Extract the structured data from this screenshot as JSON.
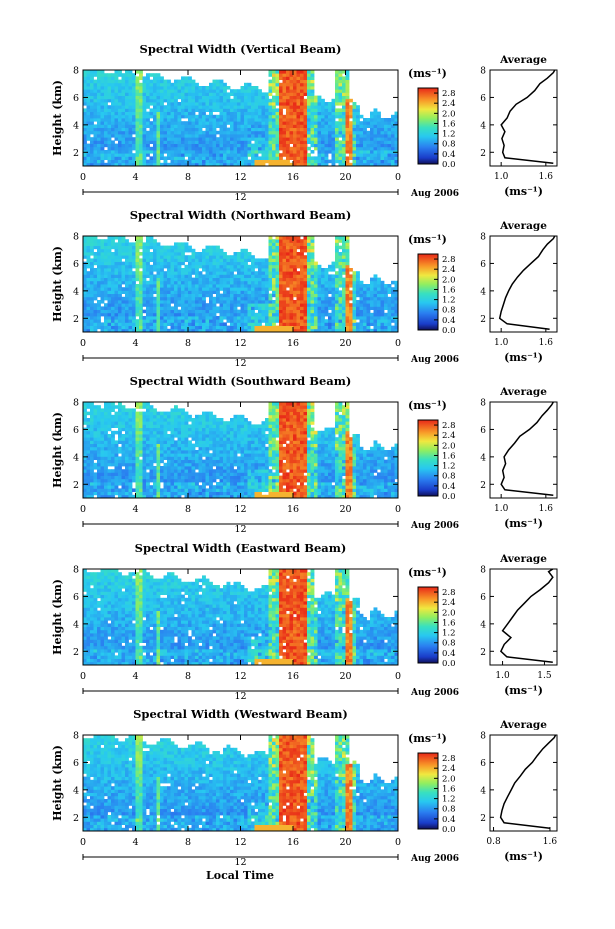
{
  "figure": {
    "xlabel": "Local Time"
  },
  "chart_data": [
    {
      "type": "heatmap",
      "title": "Spectral Width (Vertical Beam)",
      "xlabel": "",
      "ylabel": "Height (km)",
      "xlim": [
        0,
        24
      ],
      "ylim": [
        1,
        8
      ],
      "xticks": [
        "0",
        "4",
        "8",
        "12",
        "16",
        "20",
        "0"
      ],
      "yticks": [
        "2",
        "4",
        "6",
        "8"
      ],
      "date_marker": "12",
      "date_label": "Aug 2006",
      "colorbar": {
        "unit": "(ms⁻¹)",
        "ticks": [
          "0.0",
          "0.4",
          "0.8",
          "1.2",
          "1.6",
          "2.0",
          "2.4",
          "2.8"
        ],
        "range": [
          0,
          3.0
        ]
      },
      "average_profile": {
        "title": "Average",
        "xlabel": "(ms⁻¹)",
        "xticks": [
          "1.0",
          "1.6"
        ],
        "xlim": [
          0.85,
          1.75
        ],
        "yticks": [
          "2",
          "4",
          "6",
          "8"
        ],
        "ylim": [
          1,
          8
        ],
        "height_km": [
          1.2,
          1.6,
          2.0,
          2.5,
          3.0,
          3.5,
          4.0,
          4.5,
          5.0,
          5.5,
          6.0,
          6.5,
          7.0,
          7.4,
          7.8,
          8.0
        ],
        "width": [
          1.7,
          1.05,
          1.02,
          1.04,
          1.01,
          1.05,
          1.0,
          1.08,
          1.12,
          1.2,
          1.35,
          1.45,
          1.52,
          1.62,
          1.7,
          1.72
        ]
      }
    },
    {
      "type": "heatmap",
      "title": "Spectral Width (Northward Beam)",
      "xlabel": "",
      "ylabel": "Height (km)",
      "xlim": [
        0,
        24
      ],
      "ylim": [
        1,
        8
      ],
      "xticks": [
        "0",
        "4",
        "8",
        "12",
        "16",
        "20",
        "0"
      ],
      "yticks": [
        "2",
        "4",
        "6",
        "8"
      ],
      "date_marker": "12",
      "date_label": "Aug 2006",
      "colorbar": {
        "unit": "(ms⁻¹)",
        "ticks": [
          "0.0",
          "0.4",
          "0.8",
          "1.2",
          "1.6",
          "2.0",
          "2.4",
          "2.8"
        ],
        "range": [
          0,
          3.0
        ]
      },
      "average_profile": {
        "title": "Average",
        "xlabel": "(ms⁻¹)",
        "xticks": [
          "1.0",
          "1.6"
        ],
        "xlim": [
          0.85,
          1.75
        ],
        "yticks": [
          "2",
          "4",
          "6",
          "8"
        ],
        "ylim": [
          1,
          8
        ],
        "height_km": [
          1.2,
          1.6,
          2.0,
          2.5,
          3.0,
          3.5,
          4.0,
          4.5,
          5.0,
          5.5,
          6.0,
          6.5,
          7.0,
          7.4,
          7.8,
          8.0
        ],
        "width": [
          1.65,
          1.08,
          0.98,
          1.0,
          1.03,
          1.06,
          1.1,
          1.15,
          1.22,
          1.3,
          1.4,
          1.5,
          1.56,
          1.62,
          1.7,
          1.72
        ]
      }
    },
    {
      "type": "heatmap",
      "title": "Spectral Width (Southward Beam)",
      "xlabel": "",
      "ylabel": "Height (km)",
      "xlim": [
        0,
        24
      ],
      "ylim": [
        1,
        8
      ],
      "xticks": [
        "0",
        "4",
        "8",
        "12",
        "16",
        "20",
        "0"
      ],
      "yticks": [
        "2",
        "4",
        "6",
        "8"
      ],
      "date_marker": "12",
      "date_label": "Aug 2006",
      "colorbar": {
        "unit": "(ms⁻¹)",
        "ticks": [
          "0.0",
          "0.4",
          "0.8",
          "1.2",
          "1.6",
          "2.0",
          "2.4",
          "2.8"
        ],
        "range": [
          0,
          3.0
        ]
      },
      "average_profile": {
        "title": "Average",
        "xlabel": "(ms⁻¹)",
        "xticks": [
          "1.0",
          "1.6"
        ],
        "xlim": [
          0.85,
          1.75
        ],
        "yticks": [
          "2",
          "4",
          "6",
          "8"
        ],
        "ylim": [
          1,
          8
        ],
        "height_km": [
          1.2,
          1.6,
          2.0,
          2.5,
          3.0,
          3.5,
          4.0,
          4.5,
          5.0,
          5.5,
          6.0,
          6.5,
          7.0,
          7.4,
          7.8,
          8.0
        ],
        "width": [
          1.7,
          1.05,
          1.0,
          1.04,
          1.02,
          1.06,
          1.04,
          1.1,
          1.18,
          1.25,
          1.38,
          1.48,
          1.55,
          1.62,
          1.68,
          1.7
        ]
      }
    },
    {
      "type": "heatmap",
      "title": "Spectral Width (Eastward Beam)",
      "xlabel": "",
      "ylabel": "Height (km)",
      "xlim": [
        0,
        24
      ],
      "ylim": [
        1,
        8
      ],
      "xticks": [
        "0",
        "4",
        "8",
        "12",
        "16",
        "20",
        "0"
      ],
      "yticks": [
        "2",
        "4",
        "6",
        "8"
      ],
      "date_marker": "12",
      "date_label": "Aug 2006",
      "colorbar": {
        "unit": "(ms⁻¹)",
        "ticks": [
          "0.0",
          "0.4",
          "0.8",
          "1.2",
          "1.6",
          "2.0",
          "2.4",
          "2.8"
        ],
        "range": [
          0,
          3.0
        ]
      },
      "average_profile": {
        "title": "Average",
        "xlabel": "(ms⁻¹)",
        "xticks": [
          "1.0",
          "1.5"
        ],
        "xlim": [
          0.85,
          1.65
        ],
        "yticks": [
          "2",
          "4",
          "6",
          "8"
        ],
        "ylim": [
          1,
          8
        ],
        "height_km": [
          1.2,
          1.6,
          2.0,
          2.5,
          3.0,
          3.5,
          4.0,
          4.5,
          5.0,
          5.5,
          6.0,
          6.5,
          7.0,
          7.4,
          7.8,
          8.0
        ],
        "width": [
          1.6,
          1.05,
          0.98,
          1.02,
          1.1,
          1.0,
          1.06,
          1.12,
          1.18,
          1.26,
          1.34,
          1.45,
          1.55,
          1.6,
          1.55,
          1.6
        ]
      }
    },
    {
      "type": "heatmap",
      "title": "Spectral Width (Westward Beam)",
      "xlabel": "",
      "ylabel": "Height (km)",
      "xlim": [
        0,
        24
      ],
      "ylim": [
        1,
        8
      ],
      "xticks": [
        "0",
        "4",
        "8",
        "12",
        "16",
        "20",
        "0"
      ],
      "yticks": [
        "2",
        "4",
        "6",
        "8"
      ],
      "date_marker": "12",
      "date_label": "Aug 2006",
      "colorbar": {
        "unit": "(ms⁻¹)",
        "ticks": [
          "0.0",
          "0.4",
          "0.8",
          "1.2",
          "1.6",
          "2.0",
          "2.4",
          "2.8"
        ],
        "range": [
          0,
          3.0
        ]
      },
      "average_profile": {
        "title": "Average",
        "xlabel": "(ms⁻¹)",
        "xticks": [
          "0.8",
          "1.6"
        ],
        "xlim": [
          0.75,
          1.7
        ],
        "yticks": [
          "2",
          "4",
          "6",
          "8"
        ],
        "ylim": [
          1,
          8
        ],
        "height_km": [
          1.2,
          1.6,
          2.0,
          2.5,
          3.0,
          3.5,
          4.0,
          4.5,
          5.0,
          5.5,
          6.0,
          6.5,
          7.0,
          7.4,
          7.8,
          8.0
        ],
        "width": [
          1.6,
          0.95,
          0.9,
          0.92,
          0.95,
          1.0,
          1.05,
          1.1,
          1.18,
          1.25,
          1.35,
          1.42,
          1.5,
          1.58,
          1.66,
          1.68
        ]
      }
    }
  ]
}
